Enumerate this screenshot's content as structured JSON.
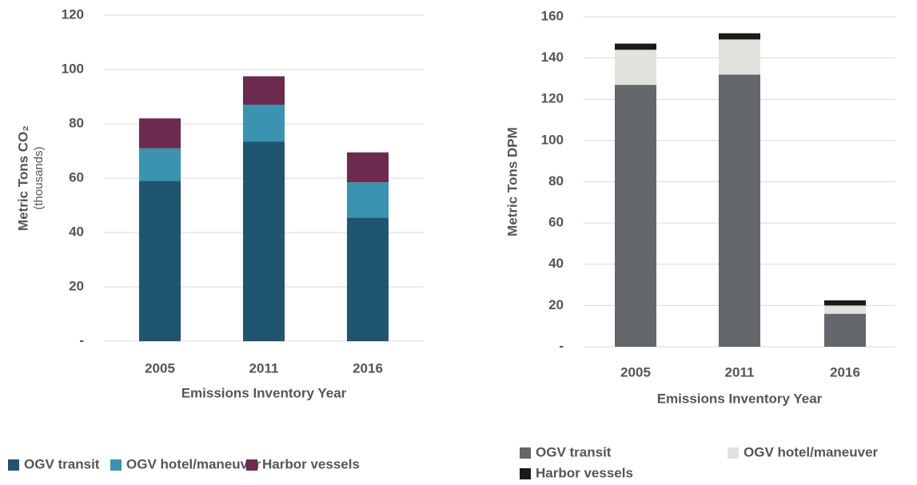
{
  "chart_data": [
    {
      "type": "stacked_bar",
      "x_label": "Emissions Inventory Year",
      "y_label": "Metric Tons CO₂",
      "y_sublabel": "(thousands)",
      "categories": [
        "2005",
        "2011",
        "2016"
      ],
      "series": [
        {
          "name": "OGV transit",
          "color": "#1f5570",
          "values": [
            59,
            73.5,
            45.5
          ]
        },
        {
          "name": "OGV hotel/maneuver",
          "color": "#3a93b0",
          "values": [
            12,
            13.5,
            13
          ]
        },
        {
          "name": "Harbor vessels",
          "color": "#6b2a4e",
          "values": [
            11,
            10.5,
            11
          ]
        }
      ],
      "ylim": [
        0,
        120
      ],
      "yticks": [
        {
          "value": 0,
          "label": "-"
        },
        20,
        40,
        60,
        80,
        100,
        120
      ],
      "grid": true
    },
    {
      "type": "stacked_bar",
      "x_label": "Emissions Inventory Year",
      "y_label": "Metric Tons DPM",
      "categories": [
        "2005",
        "2011",
        "2016"
      ],
      "series": [
        {
          "name": "OGV transit",
          "color": "#63666a",
          "values": [
            127,
            132,
            16
          ]
        },
        {
          "name": "OGV hotel/maneuver",
          "color": "#e2e2dc",
          "values": [
            17,
            17,
            4
          ]
        },
        {
          "name": "Harbor vessels",
          "color": "#1a1a1a",
          "values": [
            3,
            3,
            2.5
          ]
        }
      ],
      "ylim": [
        0,
        160
      ],
      "yticks": [
        {
          "value": 0,
          "label": "-"
        },
        20,
        40,
        60,
        80,
        100,
        120,
        140,
        160
      ],
      "grid": true
    }
  ]
}
